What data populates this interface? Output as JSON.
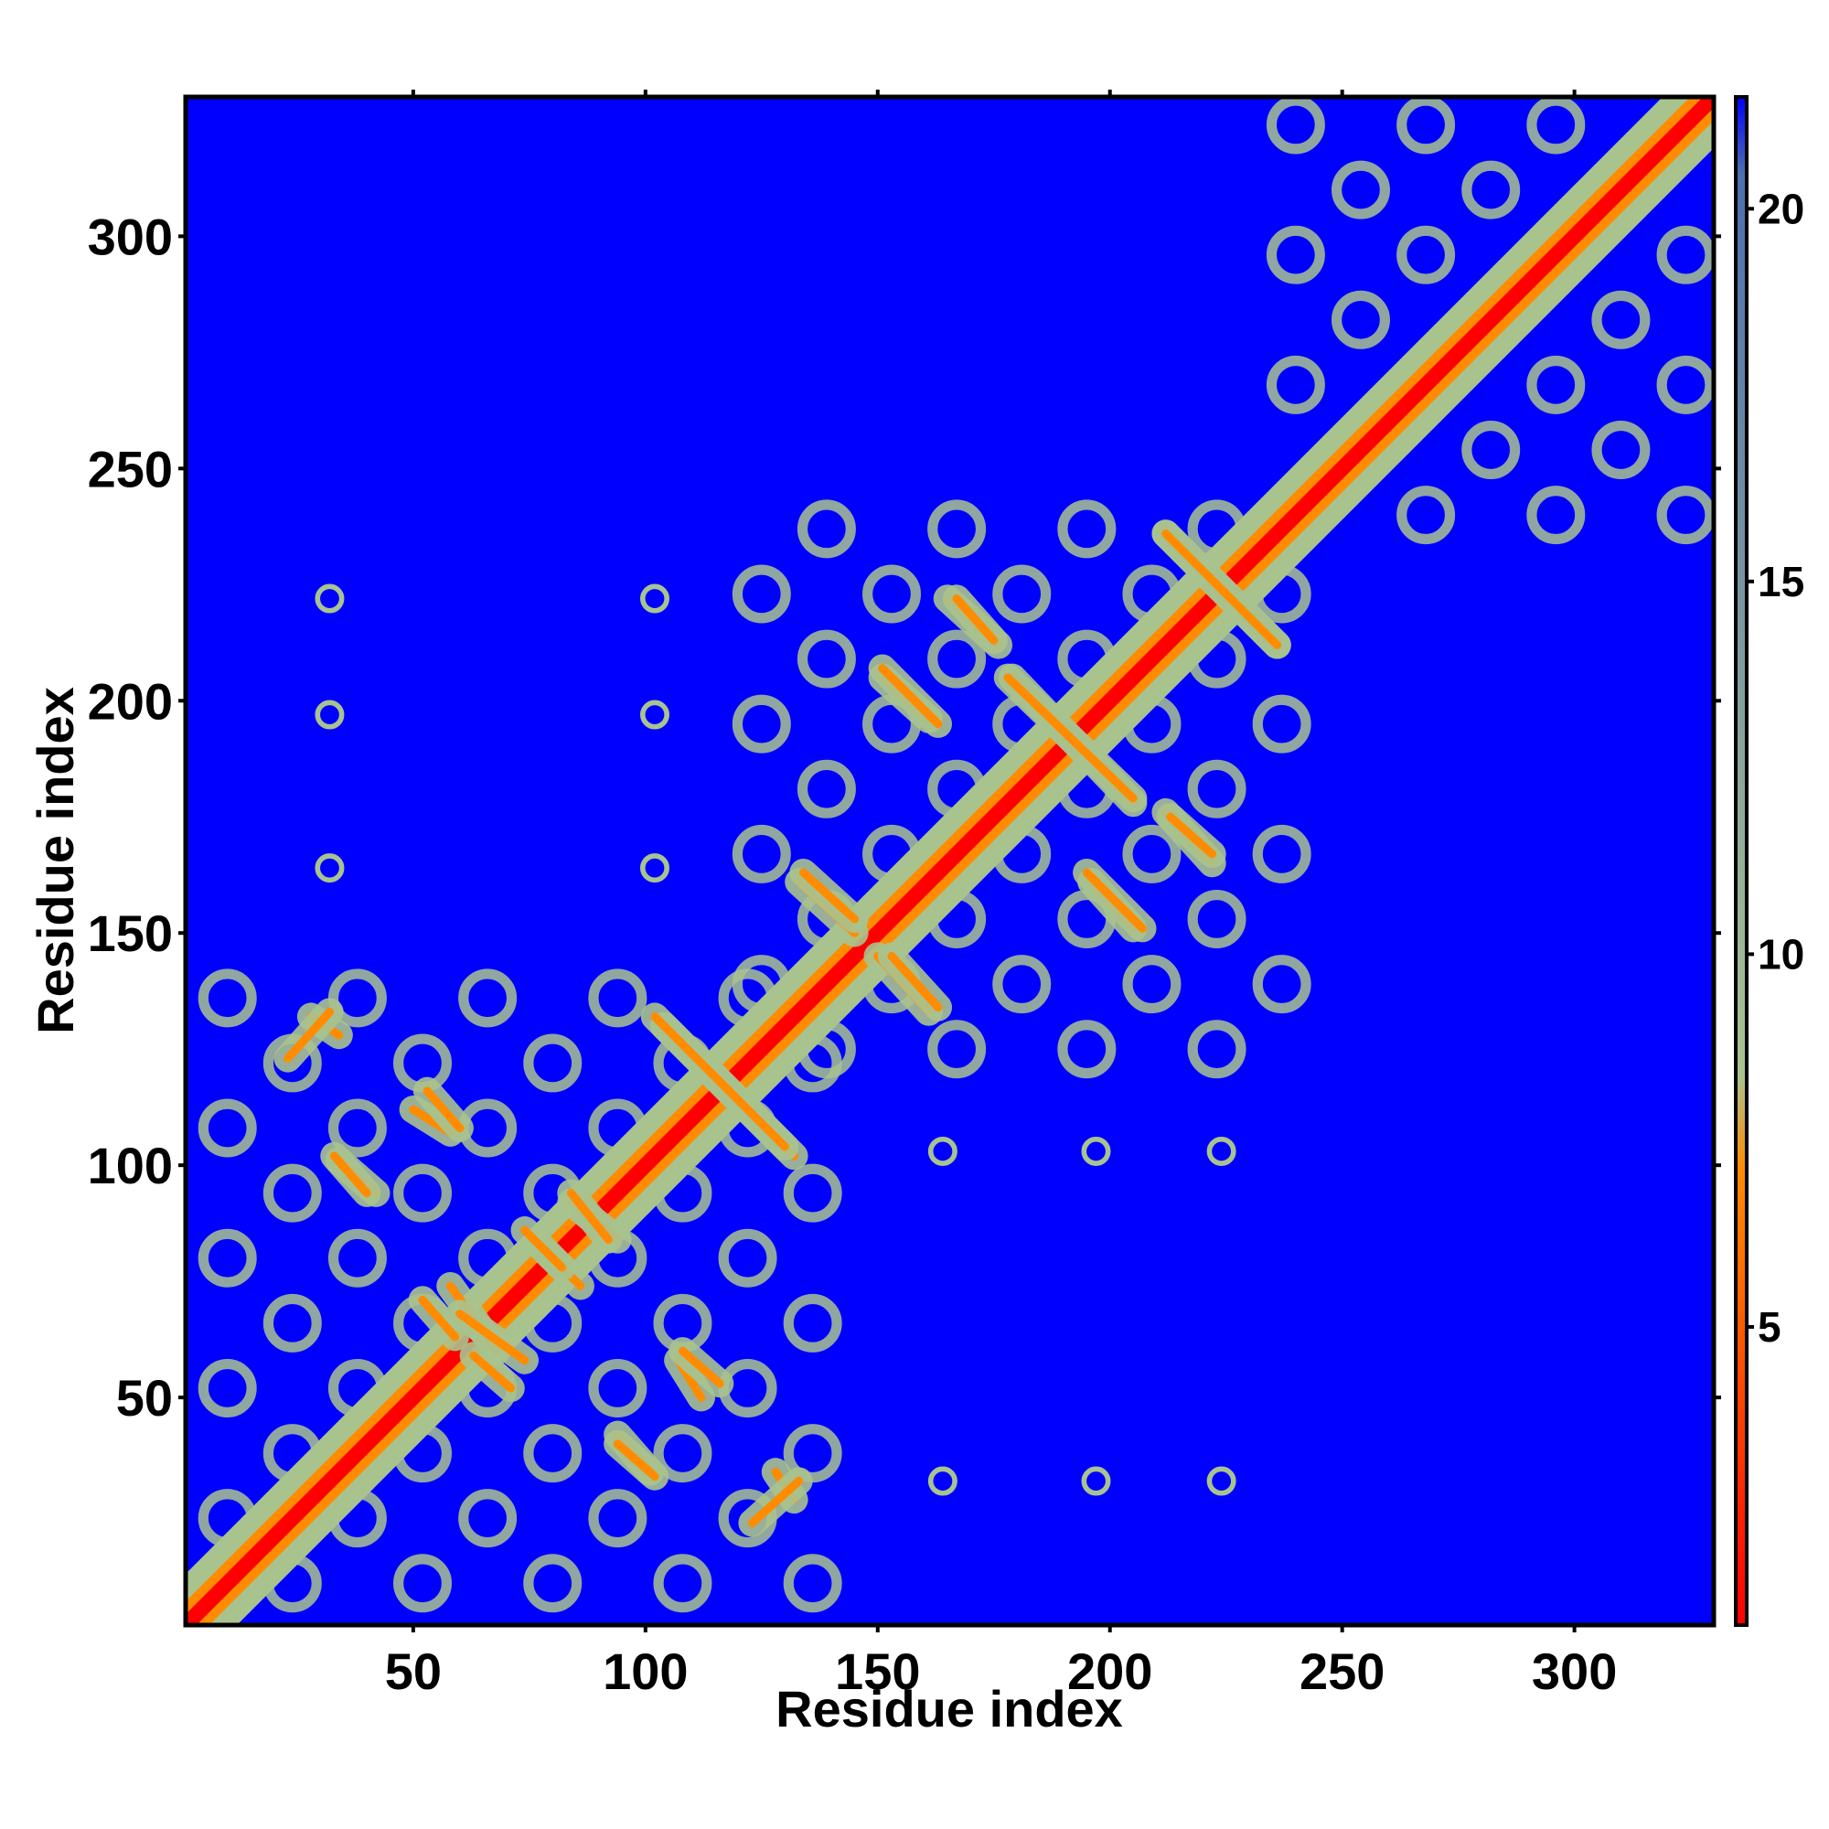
{
  "chart_data": {
    "type": "heatmap",
    "title": "",
    "xlabel": "Residue index",
    "ylabel": "Residue index",
    "xlim": [
      1,
      330
    ],
    "ylim": [
      1,
      330
    ],
    "x_ticks": [
      50,
      100,
      150,
      200,
      250,
      300
    ],
    "y_ticks": [
      50,
      100,
      150,
      200,
      250,
      300
    ],
    "x_tick_labels": [
      "50",
      "100",
      "150",
      "200",
      "250",
      "300"
    ],
    "y_tick_labels": [
      "50",
      "100",
      "150",
      "200",
      "250",
      "300"
    ],
    "colorbar": {
      "range": [
        1,
        21.5
      ],
      "ticks": [
        5,
        10,
        15,
        20
      ],
      "tick_labels": [
        "5",
        "10",
        "15",
        "20"
      ],
      "colors": [
        "#ff0000",
        "#ff8c00",
        "#a9c38f",
        "#4c6fb0",
        "#0000ff"
      ],
      "stops": [
        0,
        0.3,
        0.36,
        0.95,
        1.0
      ]
    },
    "matrix_description": "symmetric residue distance map",
    "diagonal_band": {
      "from": 1,
      "to": 330,
      "width": 6
    },
    "domains": [
      {
        "range": [
          10,
          140
        ]
      },
      {
        "range": [
          125,
          245
        ]
      },
      {
        "range": [
          240,
          330
        ]
      }
    ],
    "contact_lines": [
      {
        "from": [
          28,
          132
        ],
        "to": [
          34,
          128
        ],
        "kind": "anti"
      },
      {
        "from": [
          50,
          112
        ],
        "to": [
          58,
          107
        ],
        "kind": "anti"
      },
      {
        "from": [
          34,
          101
        ],
        "to": [
          42,
          94
        ],
        "kind": "anti"
      },
      {
        "from": [
          58,
          74
        ],
        "to": [
          68,
          60
        ],
        "kind": "anti"
      },
      {
        "from": [
          63,
          59
        ],
        "to": [
          71,
          52
        ],
        "kind": "anti"
      },
      {
        "from": [
          78,
          82
        ],
        "to": [
          86,
          74
        ],
        "kind": "anti"
      },
      {
        "from": [
          84,
          92
        ],
        "to": [
          94,
          84
        ],
        "kind": "anti"
      },
      {
        "from": [
          94,
          40
        ],
        "to": [
          102,
          33
        ],
        "kind": "anti"
      },
      {
        "from": [
          108,
          60
        ],
        "to": [
          116,
          53
        ],
        "kind": "anti"
      },
      {
        "from": [
          104,
          130
        ],
        "to": [
          132,
          102
        ],
        "kind": "anti"
      },
      {
        "from": [
          123,
          23
        ],
        "to": [
          133,
          32
        ],
        "kind": "parallel"
      },
      {
        "from": [
          133,
          161
        ],
        "to": [
          145,
          150
        ],
        "kind": "anti"
      },
      {
        "from": [
          153,
          145
        ],
        "to": [
          163,
          134
        ],
        "kind": "anti"
      },
      {
        "from": [
          151,
          205
        ],
        "to": [
          161,
          196
        ],
        "kind": "anti"
      },
      {
        "from": [
          165,
          222
        ],
        "to": [
          176,
          212
        ],
        "kind": "anti"
      },
      {
        "from": [
          179,
          205
        ],
        "to": [
          205,
          178
        ],
        "kind": "anti"
      },
      {
        "from": [
          195,
          163
        ],
        "to": [
          207,
          151
        ],
        "kind": "anti"
      },
      {
        "from": [
          213,
          175
        ],
        "to": [
          222,
          167
        ],
        "kind": "anti"
      },
      {
        "from": [
          212,
          236
        ],
        "to": [
          236,
          212
        ],
        "kind": "anti"
      }
    ],
    "isolated_contacts": [
      {
        "i": 32,
        "j": 222
      },
      {
        "i": 32,
        "j": 197
      },
      {
        "i": 32,
        "j": 164
      },
      {
        "i": 102,
        "j": 222
      },
      {
        "i": 102,
        "j": 197
      },
      {
        "i": 102,
        "j": 164
      },
      {
        "i": 164,
        "j": 103
      },
      {
        "i": 197,
        "j": 103
      },
      {
        "i": 224,
        "j": 103
      },
      {
        "i": 164,
        "j": 32
      },
      {
        "i": 197,
        "j": 32
      },
      {
        "i": 224,
        "j": 32
      }
    ]
  }
}
